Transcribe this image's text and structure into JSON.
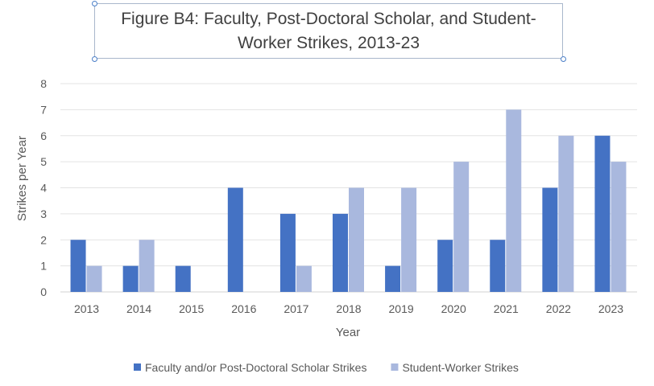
{
  "chart_data": {
    "type": "bar",
    "title": "Figure B4: Faculty, Post-Doctoral Scholar, and Student-Worker Strikes, 2013-23",
    "xlabel": "Year",
    "ylabel": "Strikes per Year",
    "ylim": [
      0,
      8
    ],
    "yticks": [
      "0",
      "1",
      "2",
      "3",
      "4",
      "5",
      "6",
      "7",
      "8"
    ],
    "grid": true,
    "legend_position": "bottom",
    "categories": [
      "2013",
      "2014",
      "2015",
      "2016",
      "2017",
      "2018",
      "2019",
      "2020",
      "2021",
      "2022",
      "2023"
    ],
    "series": [
      {
        "name": "Faculty and/or Post-Doctoral Scholar Strikes",
        "color": "#4472c4",
        "values": [
          2,
          1,
          1,
          4,
          3,
          3,
          1,
          2,
          2,
          4,
          6
        ]
      },
      {
        "name": "Student-Worker Strikes",
        "color": "#a9b8de",
        "values": [
          1,
          2,
          0,
          0,
          1,
          4,
          4,
          5,
          7,
          6,
          5
        ]
      }
    ]
  }
}
